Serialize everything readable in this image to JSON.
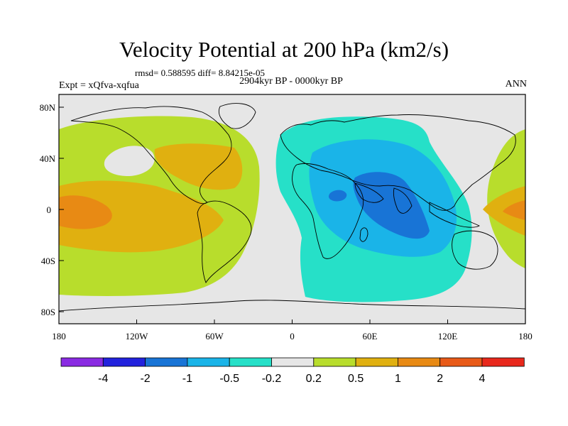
{
  "title": "Velocity Potential at 200 hPa (km2/s)",
  "stats": "rmsd= 0.588595 diff= 8.84215e-05",
  "experiment": "Expt = xQfva-xqfua",
  "period": "2904kyr BP - 0000kyr BP",
  "season": "ANN",
  "lon_ticks": [
    "180",
    "120W",
    "60W",
    "0",
    "60E",
    "120E",
    "180"
  ],
  "lat_ticks": [
    "80N",
    "40N",
    "0",
    "40S",
    "80S"
  ],
  "colorbar": {
    "colors": [
      "#8a2be2",
      "#2222dd",
      "#1874d6",
      "#1ab4e8",
      "#26e0c8",
      "#e6e6e6",
      "#b8dd2c",
      "#e0b010",
      "#e88a14",
      "#e85a18",
      "#e8281c"
    ],
    "labels": [
      "-4",
      "-2",
      "-1",
      "-0.5",
      "-0.2",
      "0.2",
      "0.5",
      "1",
      "2",
      "4"
    ]
  },
  "map_colors": {
    "background": "#e6e6e6",
    "green": "#b8dd2c",
    "yellow_orange": "#e0b010",
    "orange": "#e88a14",
    "cyan": "#26e0c8",
    "light_blue": "#1ab4e8",
    "blue": "#1874d6",
    "coastline": "#000000"
  }
}
